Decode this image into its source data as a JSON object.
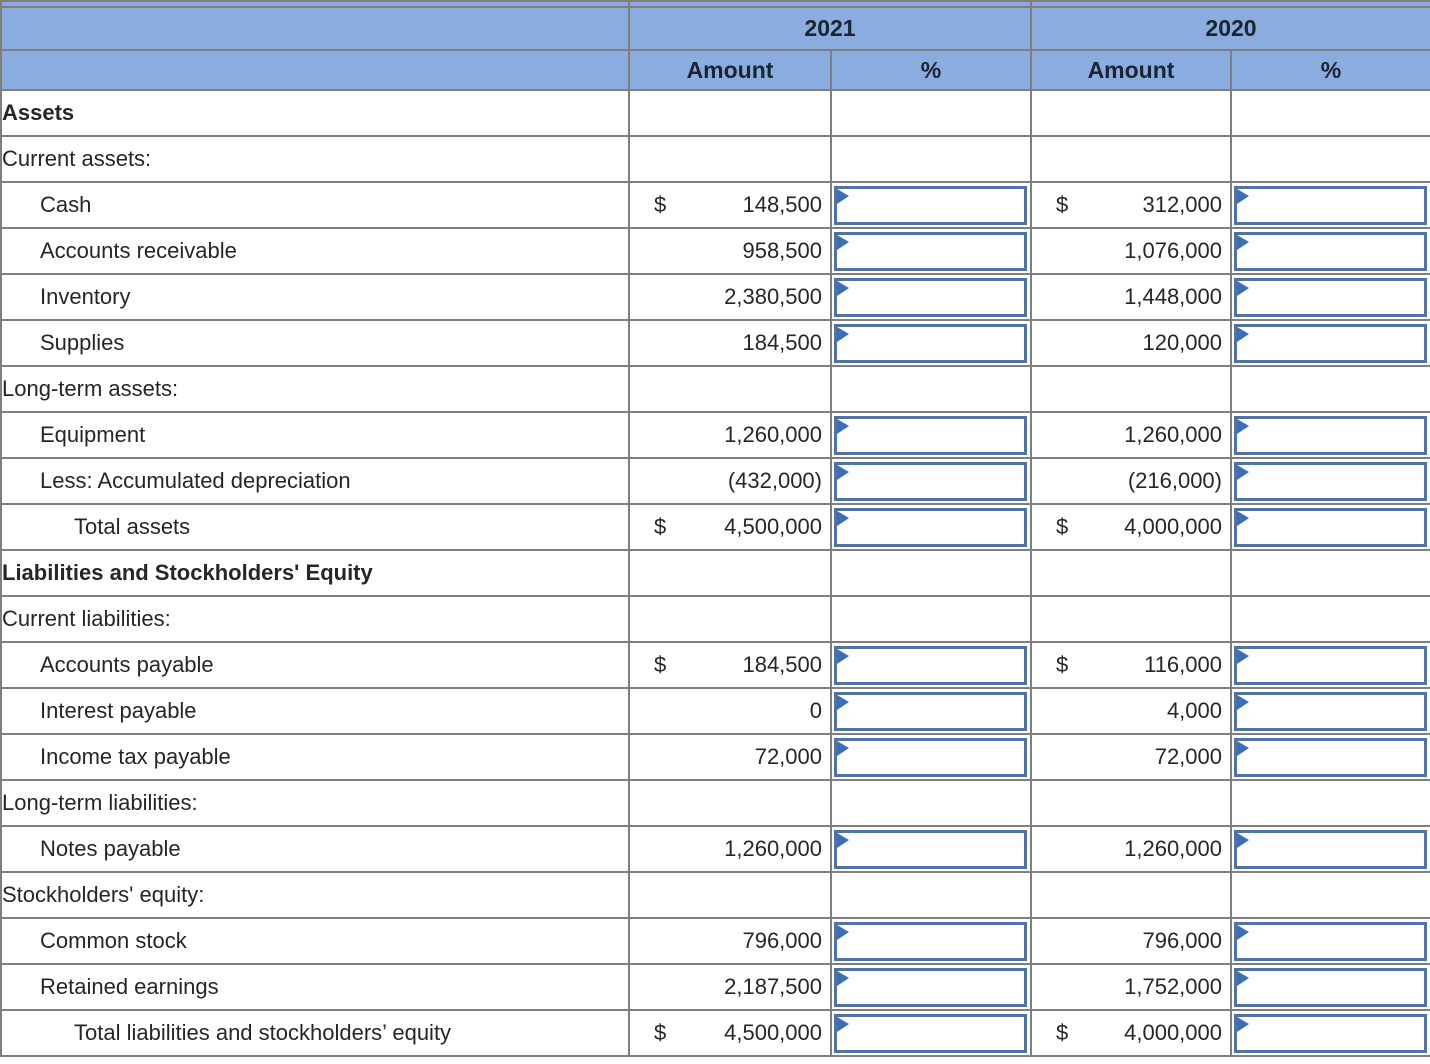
{
  "table": {
    "year_groups": [
      "2021",
      "2020"
    ],
    "amount_label": "Amount",
    "percent_label": "%",
    "rows": [
      {
        "label": "Assets",
        "indent": 0,
        "bold": true,
        "kind": "section"
      },
      {
        "label": "Current assets:",
        "indent": 0,
        "bold": false,
        "kind": "section"
      },
      {
        "label": "Cash",
        "indent": 1,
        "bold": false,
        "kind": "data",
        "dollar": "$",
        "amount_2021": "148,500",
        "amount_2020": "312,000",
        "percent_2021": "",
        "percent_2020": ""
      },
      {
        "label": "Accounts receivable",
        "indent": 1,
        "bold": false,
        "kind": "data",
        "dollar": null,
        "amount_2021": "958,500",
        "amount_2020": "1,076,000",
        "percent_2021": "",
        "percent_2020": ""
      },
      {
        "label": "Inventory",
        "indent": 1,
        "bold": false,
        "kind": "data",
        "dollar": null,
        "amount_2021": "2,380,500",
        "amount_2020": "1,448,000",
        "percent_2021": "",
        "percent_2020": ""
      },
      {
        "label": "Supplies",
        "indent": 1,
        "bold": false,
        "kind": "data",
        "dollar": null,
        "amount_2021": "184,500",
        "amount_2020": "120,000",
        "percent_2021": "",
        "percent_2020": ""
      },
      {
        "label": "Long-term assets:",
        "indent": 0,
        "bold": false,
        "kind": "section"
      },
      {
        "label": "Equipment",
        "indent": 1,
        "bold": false,
        "kind": "data",
        "dollar": null,
        "amount_2021": "1,260,000",
        "amount_2020": "1,260,000",
        "percent_2021": "",
        "percent_2020": ""
      },
      {
        "label": "Less: Accumulated depreciation",
        "indent": 1,
        "bold": false,
        "kind": "data",
        "dollar": null,
        "amount_2021": "(432,000)",
        "amount_2020": "(216,000)",
        "percent_2021": "",
        "percent_2020": ""
      },
      {
        "label": "Total assets",
        "indent": 2,
        "bold": false,
        "kind": "data",
        "total": true,
        "dollar": "$",
        "amount_2021": "4,500,000",
        "amount_2020": "4,000,000",
        "percent_2021": "",
        "percent_2020": ""
      },
      {
        "label": "Liabilities and Stockholders' Equity",
        "indent": 0,
        "bold": true,
        "kind": "section"
      },
      {
        "label": "Current liabilities:",
        "indent": 0,
        "bold": false,
        "kind": "section"
      },
      {
        "label": "Accounts payable",
        "indent": 1,
        "bold": false,
        "kind": "data",
        "dollar": "$",
        "amount_2021": "184,500",
        "amount_2020": "116,000",
        "percent_2021": "",
        "percent_2020": ""
      },
      {
        "label": "Interest payable",
        "indent": 1,
        "bold": false,
        "kind": "data",
        "dollar": null,
        "amount_2021": "0",
        "amount_2020": "4,000",
        "percent_2021": "",
        "percent_2020": ""
      },
      {
        "label": "Income tax payable",
        "indent": 1,
        "bold": false,
        "kind": "data",
        "dollar": null,
        "amount_2021": "72,000",
        "amount_2020": "72,000",
        "percent_2021": "",
        "percent_2020": ""
      },
      {
        "label": "Long-term liabilities:",
        "indent": 0,
        "bold": false,
        "kind": "section"
      },
      {
        "label": "Notes payable",
        "indent": 1,
        "bold": false,
        "kind": "data",
        "dollar": null,
        "amount_2021": "1,260,000",
        "amount_2020": "1,260,000",
        "percent_2021": "",
        "percent_2020": ""
      },
      {
        "label": "Stockholders' equity:",
        "indent": 0,
        "bold": false,
        "kind": "section"
      },
      {
        "label": "Common stock",
        "indent": 1,
        "bold": false,
        "kind": "data",
        "dollar": null,
        "amount_2021": "796,000",
        "amount_2020": "796,000",
        "percent_2021": "",
        "percent_2020": ""
      },
      {
        "label": "Retained earnings",
        "indent": 1,
        "bold": false,
        "kind": "data",
        "dollar": null,
        "amount_2021": "2,187,500",
        "amount_2020": "1,752,000",
        "percent_2021": "",
        "percent_2020": ""
      },
      {
        "label": "Total liabilities and stockholders’ equity",
        "indent": 2,
        "bold": false,
        "kind": "data",
        "total": true,
        "dollar": "$",
        "amount_2021": "4,500,000",
        "amount_2020": "4,000,000",
        "percent_2021": "",
        "percent_2020": ""
      }
    ]
  },
  "colors": {
    "header_bg": "#8bacdf",
    "header_text": "#1a2433",
    "body_text": "#262626",
    "grid_border": "#7f7f7f",
    "input_border": "#4f73a3",
    "input_flag": "#3c6db5",
    "total_rule": "#000000"
  }
}
